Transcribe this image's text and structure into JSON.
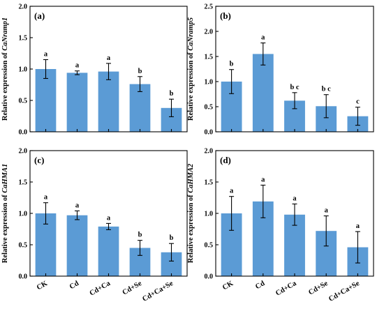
{
  "chart_data": [
    {
      "type": "bar",
      "panel": "(a)",
      "ylabel_prefix": "Relative expression of ",
      "ylabel_gene": "CaNramp1",
      "categories": [
        "CK",
        "Cd",
        "Cd+Ca",
        "Cd+Se",
        "Cd+Ca+Se"
      ],
      "values": [
        1.0,
        0.94,
        0.96,
        0.76,
        0.38
      ],
      "errors": [
        0.15,
        0.03,
        0.13,
        0.12,
        0.14
      ],
      "significance": [
        "a",
        "a",
        "a",
        "b",
        "b"
      ],
      "ylim": [
        0,
        2.0
      ],
      "yticks": [
        "0.0",
        "0.5",
        "1.0",
        "1.5",
        "2.0"
      ],
      "bar_color": "#5b9bd5"
    },
    {
      "type": "bar",
      "panel": "(b)",
      "ylabel_prefix": "Relative expression of ",
      "ylabel_gene": "CaNramp5",
      "categories": [
        "CK",
        "Cd",
        "Cd+Ca",
        "Cd+Se",
        "Cd+Ca+Se"
      ],
      "values": [
        1.0,
        1.55,
        0.62,
        0.51,
        0.31
      ],
      "errors": [
        0.24,
        0.22,
        0.16,
        0.23,
        0.18
      ],
      "significance": [
        "b",
        "a",
        "b c",
        "b c",
        "c"
      ],
      "ylim": [
        0,
        2.5
      ],
      "yticks": [
        "0.0",
        "0.5",
        "1.0",
        "1.5",
        "2.0",
        "2.5"
      ],
      "bar_color": "#5b9bd5"
    },
    {
      "type": "bar",
      "panel": "(c)",
      "ylabel_prefix": "Relative expression of ",
      "ylabel_gene": "CaHMA1",
      "categories": [
        "CK",
        "Cd",
        "Cd+Ca",
        "Cd+Se",
        "Cd+Ca+Se"
      ],
      "values": [
        1.0,
        0.97,
        0.79,
        0.45,
        0.38
      ],
      "errors": [
        0.17,
        0.07,
        0.05,
        0.12,
        0.14
      ],
      "significance": [
        "a",
        "a",
        "a",
        "b",
        "b"
      ],
      "ylim": [
        0,
        2.0
      ],
      "yticks": [
        "0.0",
        "0.5",
        "1.0",
        "1.5",
        "2.0"
      ],
      "bar_color": "#5b9bd5"
    },
    {
      "type": "bar",
      "panel": "(d)",
      "ylabel_prefix": "Relative expression of ",
      "ylabel_gene": "CaHMA2",
      "categories": [
        "CK",
        "Cd",
        "Cd+Ca",
        "Cd+Se",
        "Cd+Ca+Se"
      ],
      "values": [
        1.0,
        1.19,
        0.98,
        0.72,
        0.46
      ],
      "errors": [
        0.27,
        0.26,
        0.17,
        0.24,
        0.25
      ],
      "significance": [
        "a",
        "a",
        "a",
        "a",
        "a"
      ],
      "ylim": [
        0,
        2.0
      ],
      "yticks": [
        "0.0",
        "0.5",
        "1.0",
        "1.5",
        "2.0"
      ],
      "bar_color": "#5b9bd5"
    }
  ]
}
